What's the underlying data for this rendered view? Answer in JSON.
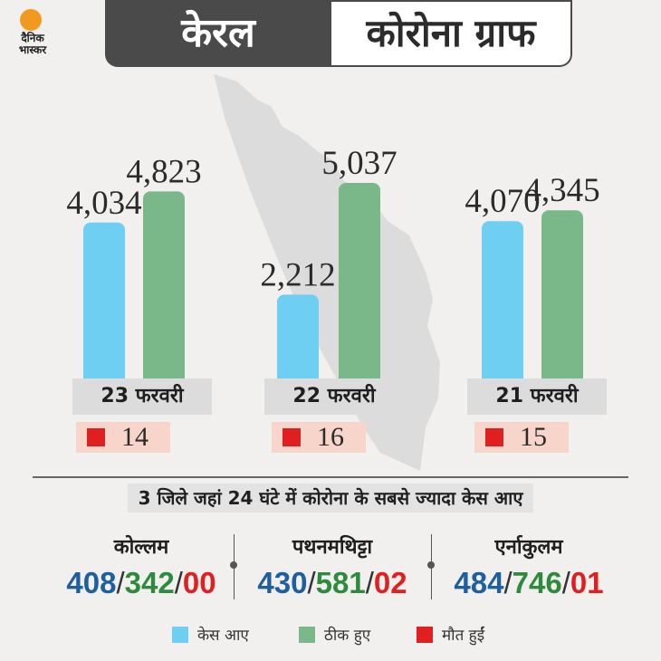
{
  "brand": {
    "logo_text": "दैनिक भास्कर",
    "logo_color": "#f29a20"
  },
  "header": {
    "title_left": "केरल",
    "title_right": "कोरोना ग्राफ"
  },
  "colors": {
    "cases": "#6ecff2",
    "recovered": "#7ab88a",
    "deaths": "#e02020",
    "map": "#dcdcdc"
  },
  "chart_data": {
    "type": "bar",
    "categories": [
      "23 फरवरी",
      "22 फरवरी",
      "21 फरवरी"
    ],
    "series": [
      {
        "name": "केस आए",
        "values": [
          4034,
          2212,
          4070
        ]
      },
      {
        "name": "ठीक हुए",
        "values": [
          4823,
          5037,
          4345
        ]
      }
    ],
    "value_labels": [
      [
        "4,034",
        "4,823"
      ],
      [
        "2,212",
        "5,037"
      ],
      [
        "4,070",
        "4,345"
      ]
    ],
    "deaths": [
      "14",
      "16",
      "15"
    ],
    "ylim": [
      0,
      5500
    ],
    "grid": false,
    "legend": "bottom"
  },
  "districts": {
    "heading": "3 जिले जहां 24 घंटे में कोरोना के सबसे ज्यादा केस आए",
    "items": [
      {
        "name": "कोल्लम",
        "cases": "408",
        "recovered": "342",
        "deaths": "00"
      },
      {
        "name": "पथनमथिट्टा",
        "cases": "430",
        "recovered": "581",
        "deaths": "02"
      },
      {
        "name": "एर्नाकुलम",
        "cases": "484",
        "recovered": "746",
        "deaths": "01"
      }
    ]
  },
  "legend": [
    {
      "label": "केस आए",
      "color": "#6ecff2"
    },
    {
      "label": "ठीक हुए",
      "color": "#7ab88a"
    },
    {
      "label": "मौत हुईं",
      "color": "#e02020"
    }
  ]
}
